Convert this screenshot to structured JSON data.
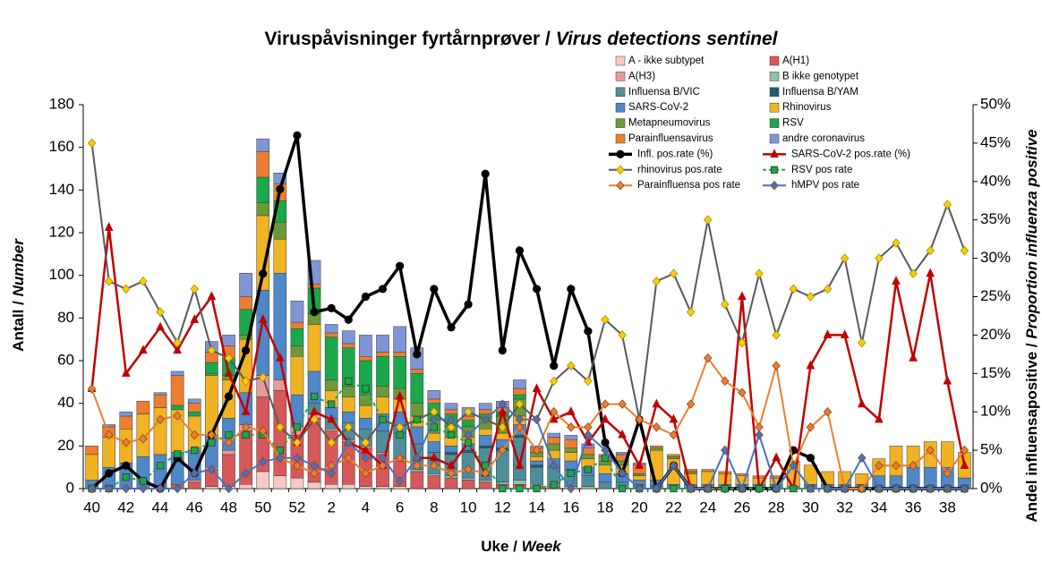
{
  "chart_data": {
    "type": "bar",
    "title": {
      "main": "Viruspåvisninger fyrtårnprøver / ",
      "italic": "Virus detections sentinel"
    },
    "y_label": {
      "main": "Antall / ",
      "italic": "Number"
    },
    "y2_label": {
      "main": "Andel influensapositive / ",
      "italic": "Proportion influenza positive"
    },
    "x_label": {
      "main": "Uke / ",
      "italic": "Week"
    },
    "categories": [
      "40",
      null,
      "42",
      null,
      "44",
      null,
      "46",
      null,
      "48",
      null,
      "50",
      null,
      "52",
      null,
      "2",
      null,
      "4",
      null,
      "6",
      null,
      "8",
      null,
      "10",
      null,
      "12",
      null,
      "14",
      null,
      "16",
      null,
      "18",
      null,
      "20",
      null,
      "22",
      null,
      "24",
      null,
      "26",
      null,
      "28",
      null,
      "30",
      null,
      "32",
      null,
      "34",
      null,
      "36",
      null,
      "38",
      null
    ],
    "ylim": [
      0,
      180
    ],
    "yticks": [
      0,
      20,
      40,
      60,
      80,
      100,
      120,
      140,
      160,
      180
    ],
    "y2lim": [
      0,
      50
    ],
    "y2ticks": [
      {
        "value": 0,
        "label": "0%"
      },
      {
        "value": 5,
        "label": "5%"
      },
      {
        "value": 10,
        "label": "10%"
      },
      {
        "value": 15,
        "label": "15%"
      },
      {
        "value": 20,
        "label": "20%"
      },
      {
        "value": 25,
        "label": "25%"
      },
      {
        "value": 30,
        "label": "30%"
      },
      {
        "value": 35,
        "label": "35%"
      },
      {
        "value": 40,
        "label": "40%"
      },
      {
        "value": 45,
        "label": "45%"
      },
      {
        "value": 50,
        "label": "50%"
      }
    ],
    "stacked": true,
    "series": [
      {
        "name": "A - ikke subtypet",
        "color": "#f6c9c4",
        "values": [
          0,
          0,
          0,
          0,
          0,
          0,
          0,
          1,
          1,
          2,
          8,
          6,
          5,
          3,
          2,
          2,
          1,
          1,
          1,
          0,
          0,
          0,
          0,
          0,
          0,
          0,
          0,
          0,
          0,
          0,
          0,
          0,
          0,
          0,
          0,
          0,
          0,
          0,
          0,
          0,
          0,
          0,
          0,
          0,
          0,
          0,
          0,
          0,
          0,
          0,
          0,
          0
        ]
      },
      {
        "name": "A(H1)",
        "color": "#d65858",
        "values": [
          0,
          0,
          0,
          0,
          1,
          2,
          3,
          8,
          15,
          25,
          35,
          40,
          20,
          30,
          25,
          20,
          18,
          15,
          12,
          8,
          6,
          5,
          4,
          3,
          2,
          2,
          1,
          1,
          0,
          0,
          0,
          0,
          0,
          0,
          0,
          0,
          0,
          0,
          0,
          0,
          0,
          0,
          0,
          0,
          0,
          0,
          0,
          0,
          0,
          0,
          0,
          0
        ]
      },
      {
        "name": "A(H3)",
        "color": "#e89a9a",
        "values": [
          0,
          0,
          0,
          0,
          0,
          0,
          1,
          1,
          2,
          3,
          10,
          5,
          4,
          2,
          1,
          1,
          1,
          1,
          1,
          0,
          0,
          0,
          0,
          0,
          0,
          0,
          0,
          0,
          0,
          0,
          0,
          0,
          0,
          0,
          0,
          0,
          0,
          0,
          0,
          0,
          0,
          0,
          0,
          0,
          0,
          0,
          0,
          0,
          0,
          0,
          0,
          0
        ]
      },
      {
        "name": "B ikke genotypet",
        "color": "#8fc2a8",
        "values": [
          0,
          0,
          0,
          0,
          0,
          0,
          0,
          0,
          0,
          0,
          0,
          0,
          0,
          0,
          0,
          0,
          0,
          0,
          0,
          1,
          1,
          1,
          1,
          1,
          1,
          2,
          1,
          1,
          1,
          1,
          0,
          0,
          0,
          0,
          0,
          0,
          0,
          0,
          0,
          0,
          0,
          0,
          0,
          0,
          0,
          0,
          0,
          0,
          0,
          0,
          0,
          0
        ]
      },
      {
        "name": "Influensa B/VIC",
        "color": "#4f8d9a",
        "values": [
          0,
          0,
          0,
          0,
          0,
          0,
          0,
          0,
          0,
          0,
          0,
          0,
          0,
          5,
          5,
          8,
          8,
          10,
          12,
          12,
          10,
          10,
          12,
          15,
          15,
          20,
          8,
          8,
          8,
          5,
          3,
          3,
          2,
          1,
          0,
          0,
          0,
          0,
          0,
          0,
          0,
          0,
          0,
          0,
          0,
          0,
          0,
          0,
          0,
          0,
          0,
          0
        ]
      },
      {
        "name": "Influensa B/YAM",
        "color": "#1f5f6f",
        "values": [
          0,
          0,
          0,
          0,
          0,
          0,
          0,
          0,
          0,
          0,
          0,
          0,
          0,
          0,
          0,
          0,
          0,
          0,
          0,
          0,
          0,
          1,
          1,
          1,
          1,
          1,
          1,
          0,
          0,
          0,
          0,
          0,
          0,
          0,
          0,
          0,
          0,
          0,
          0,
          0,
          0,
          0,
          0,
          0,
          0,
          0,
          0,
          0,
          0,
          0,
          0,
          0
        ]
      },
      {
        "name": "SARS-CoV-2",
        "color": "#4f87c7",
        "values": [
          4,
          10,
          12,
          15,
          15,
          15,
          14,
          15,
          15,
          15,
          40,
          50,
          15,
          15,
          5,
          5,
          5,
          8,
          10,
          8,
          5,
          3,
          3,
          5,
          4,
          5,
          2,
          4,
          4,
          4,
          4,
          4,
          2,
          3,
          2,
          2,
          2,
          2,
          2,
          2,
          2,
          1,
          2,
          2,
          2,
          2,
          6,
          6,
          10,
          10,
          10,
          5
        ]
      },
      {
        "name": "Rhinovirus",
        "color": "#f0b323",
        "values": [
          12,
          14,
          16,
          20,
          22,
          20,
          16,
          28,
          18,
          25,
          35,
          16,
          18,
          22,
          8,
          7,
          6,
          8,
          6,
          5,
          4,
          4,
          3,
          3,
          3,
          4,
          2,
          4,
          4,
          4,
          4,
          4,
          2,
          14,
          12,
          5,
          6,
          5,
          4,
          3,
          3,
          12,
          9,
          6,
          6,
          5,
          8,
          14,
          10,
          12,
          12,
          12
        ]
      },
      {
        "name": "Metapneumovirus",
        "color": "#6a9a3a",
        "values": [
          0,
          0,
          0,
          0,
          0,
          0,
          0,
          1,
          2,
          2,
          6,
          8,
          5,
          5,
          5,
          5,
          5,
          5,
          5,
          6,
          6,
          5,
          5,
          5,
          8,
          8,
          2,
          3,
          2,
          2,
          2,
          2,
          1,
          1,
          1,
          1,
          0,
          0,
          0,
          0,
          0,
          0,
          0,
          0,
          0,
          0,
          0,
          0,
          0,
          0,
          0,
          0
        ]
      },
      {
        "name": "RSV",
        "color": "#1aa84a",
        "values": [
          0,
          0,
          0,
          0,
          0,
          2,
          2,
          5,
          8,
          12,
          12,
          10,
          8,
          12,
          20,
          18,
          16,
          14,
          15,
          14,
          8,
          6,
          3,
          2,
          2,
          2,
          0,
          0,
          0,
          0,
          0,
          0,
          0,
          0,
          0,
          0,
          0,
          0,
          0,
          0,
          0,
          0,
          0,
          0,
          0,
          0,
          0,
          0,
          0,
          0,
          0,
          0
        ]
      },
      {
        "name": "Parainfluensavirus",
        "color": "#ed7d31",
        "values": [
          4,
          5,
          6,
          6,
          6,
          14,
          4,
          5,
          6,
          6,
          12,
          8,
          3,
          2,
          2,
          2,
          2,
          2,
          2,
          2,
          2,
          2,
          2,
          2,
          2,
          3,
          2,
          3,
          4,
          3,
          2,
          3,
          4,
          1,
          1,
          1,
          1,
          1,
          1,
          1,
          1,
          0,
          0,
          0,
          0,
          0,
          0,
          0,
          0,
          0,
          0,
          0
        ]
      },
      {
        "name": "andre coronavirus",
        "color": "#7f96d6",
        "values": [
          0,
          1,
          2,
          0,
          1,
          2,
          2,
          5,
          5,
          11,
          6,
          5,
          10,
          11,
          4,
          6,
          10,
          8,
          12,
          10,
          4,
          3,
          4,
          3,
          3,
          4,
          1,
          2,
          2,
          2,
          1,
          1,
          1,
          0,
          0,
          0,
          0,
          0,
          0,
          0,
          0,
          0,
          0,
          0,
          0,
          0,
          0,
          0,
          0,
          0,
          0,
          0
        ]
      },
      {
        "name": "Infl. pos.rate (%)",
        "type": "line",
        "axis": "y2",
        "color": "#000000",
        "marker": "circle",
        "marker_fill": "#000000",
        "width": 3.5,
        "values": [
          0,
          2,
          3,
          1,
          0,
          4,
          2,
          7,
          12,
          18,
          28,
          39,
          46,
          23,
          23.5,
          22,
          25,
          26,
          29,
          17.5,
          26,
          21,
          24,
          41,
          18,
          31,
          26,
          16,
          26,
          20.5,
          6,
          2,
          9,
          0,
          3,
          0,
          0,
          0,
          0,
          0,
          0,
          5,
          4,
          0,
          0,
          0,
          0,
          0,
          0,
          0,
          0,
          0
        ]
      },
      {
        "name": "SARS-CoV-2 pos.rate (%)",
        "type": "line",
        "axis": "y2",
        "color": "#c00000",
        "marker": "triangle",
        "marker_fill": "#c00000",
        "width": 2.5,
        "values": [
          13,
          34,
          15,
          18,
          21,
          18,
          22,
          25,
          15,
          10,
          22,
          17,
          6,
          10,
          9,
          6,
          5,
          3,
          12,
          4,
          4,
          3,
          6,
          2,
          10,
          3,
          13,
          9,
          10,
          6,
          9,
          7,
          3,
          11,
          9,
          0,
          0,
          0,
          25,
          0,
          4,
          0,
          16,
          20,
          20,
          11,
          9,
          27,
          17,
          28,
          14,
          3
        ]
      },
      {
        "name": "rhinovirus pos.rate",
        "type": "line",
        "axis": "y2",
        "color": "#595959",
        "marker": "diamond",
        "marker_fill": "#f5d000",
        "width": 2,
        "values": [
          45,
          27,
          26,
          27,
          23,
          19,
          26,
          18,
          17,
          14,
          14.5,
          8,
          6,
          9,
          6,
          8,
          6,
          9,
          8,
          9,
          10,
          8,
          10,
          9,
          8,
          11,
          9,
          14,
          16,
          14,
          22,
          20,
          9,
          27,
          28,
          23,
          35,
          24,
          19,
          28,
          20,
          26,
          25,
          26,
          30,
          19,
          30,
          32,
          28,
          31,
          37,
          31
        ]
      },
      {
        "name": "RSV pos rate",
        "type": "line",
        "axis": "y2",
        "color": "#1aa84a",
        "marker": "square",
        "marker_fill": "#1aa84a",
        "width": 2,
        "dash": "4 3",
        "values": [
          0,
          0,
          1.5,
          1,
          3,
          4.5,
          5,
          6,
          7,
          7,
          7,
          5,
          8,
          12,
          11,
          14,
          13,
          9,
          7,
          9,
          8,
          7,
          6,
          3,
          0,
          0,
          0,
          0.5,
          2,
          2.5,
          4,
          0,
          0,
          0,
          0,
          0,
          0,
          0,
          0,
          0,
          0,
          0,
          0,
          0,
          0,
          0,
          0,
          0,
          0,
          0,
          0,
          0
        ]
      },
      {
        "name": "Parainfluensa pos rate",
        "type": "line",
        "axis": "y2",
        "color": "#ed7d31",
        "marker": "diamond",
        "marker_fill": "#ed7d31",
        "width": 2,
        "values": [
          13,
          7,
          6,
          6.5,
          9,
          9.5,
          7,
          7,
          6,
          8,
          7.5,
          4,
          3,
          2,
          3,
          4,
          2,
          3,
          4,
          3,
          3,
          2,
          2.5,
          2,
          5,
          8,
          5,
          10,
          8,
          8,
          11,
          11,
          9,
          8,
          7,
          11,
          17,
          14,
          12.5,
          8,
          16,
          3,
          8,
          10,
          0,
          0,
          3,
          3,
          3,
          5,
          2,
          5
        ]
      },
      {
        "name": "hMPV pos rate",
        "type": "line",
        "axis": "y2",
        "color": "#4472c4",
        "marker": "diamond",
        "marker_fill": "#4472c4",
        "width": 2,
        "values": [
          0,
          0,
          0,
          0,
          0,
          0,
          2,
          2.5,
          0,
          2,
          3.5,
          4,
          4,
          3,
          2,
          6,
          4,
          4,
          1,
          4,
          9,
          9,
          7,
          9,
          11,
          9,
          9,
          3,
          0,
          7,
          5,
          2,
          0,
          0,
          3,
          0,
          0,
          5,
          0,
          7,
          0,
          3,
          0,
          0,
          0,
          4,
          0,
          0,
          0,
          0,
          0,
          0
        ]
      }
    ]
  }
}
